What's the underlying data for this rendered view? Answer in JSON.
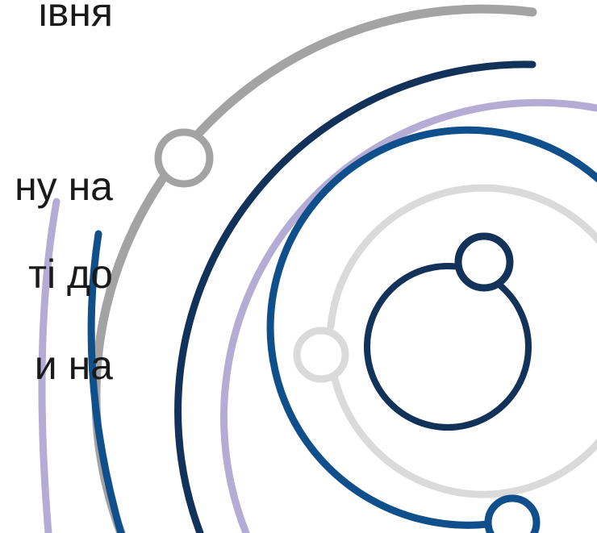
{
  "lines": [
    "івня",
    "ну на",
    "ті до",
    "и на"
  ]
}
